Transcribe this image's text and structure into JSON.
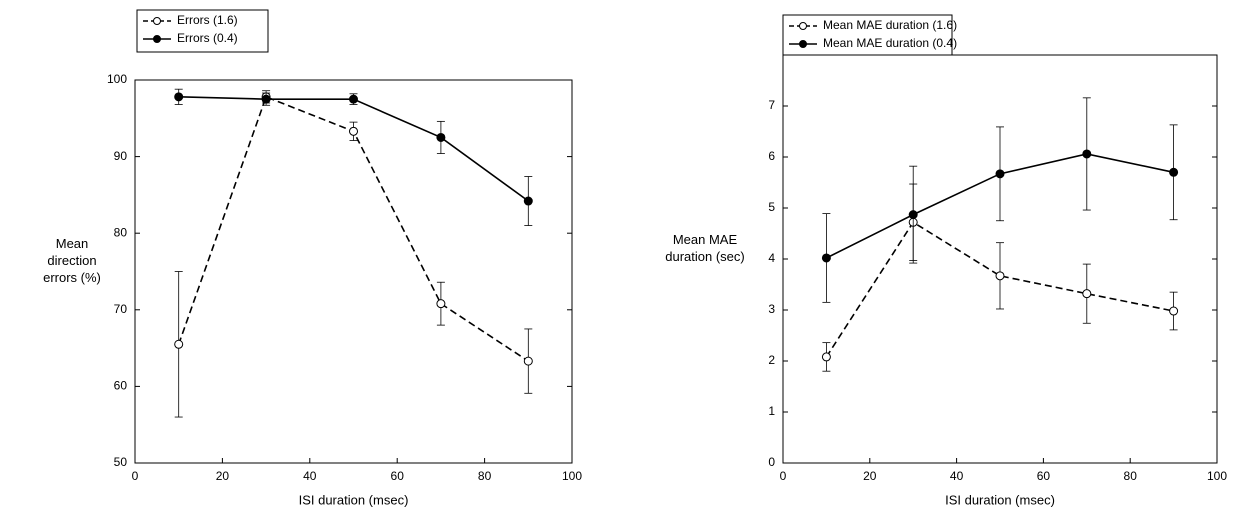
{
  "chart_data": [
    {
      "type": "line",
      "xlabel": "ISI duration (msec)",
      "ylabel": [
        "Mean",
        "direction",
        "errors (%)"
      ],
      "x": [
        10,
        30,
        50,
        70,
        90
      ],
      "xlim": [
        0,
        100
      ],
      "xticks": [
        0,
        20,
        40,
        60,
        80,
        100
      ],
      "ylim": [
        50,
        100
      ],
      "yticks": [
        50,
        60,
        70,
        80,
        90,
        100
      ],
      "legend": "top-left",
      "series": [
        {
          "name": "Errors (1.6)",
          "color": "#000000",
          "style": "dashed",
          "marker": "open",
          "values": [
            65.5,
            97.8,
            93.3,
            70.8,
            63.3
          ],
          "errors": [
            9.5,
            0.8,
            1.2,
            2.8,
            4.2
          ]
        },
        {
          "name": "Errors (0.4)",
          "color": "#000000",
          "style": "solid",
          "marker": "filled",
          "values": [
            97.8,
            97.5,
            97.5,
            92.5,
            84.2
          ],
          "errors": [
            1.0,
            0.8,
            0.7,
            2.1,
            3.2
          ]
        }
      ]
    },
    {
      "type": "line",
      "xlabel": "ISI duration (msec)",
      "ylabel": [
        "Mean MAE",
        "duration (sec)"
      ],
      "x": [
        10,
        30,
        50,
        70,
        90
      ],
      "xlim": [
        0,
        100
      ],
      "xticks": [
        0,
        20,
        40,
        60,
        80,
        100
      ],
      "ylim": [
        0,
        8
      ],
      "yticks": [
        0,
        1,
        2,
        3,
        4,
        5,
        6,
        7
      ],
      "legend": "top-left",
      "series": [
        {
          "name": "Mean MAE duration (1.6)",
          "color": "#000000",
          "style": "dashed",
          "marker": "open",
          "values": [
            2.08,
            4.72,
            3.67,
            3.32,
            2.98
          ],
          "errors": [
            0.28,
            0.75,
            0.65,
            0.58,
            0.37
          ]
        },
        {
          "name": "Mean MAE duration (0.4)",
          "color": "#000000",
          "style": "solid",
          "marker": "filled",
          "values": [
            4.02,
            4.87,
            5.67,
            6.06,
            5.7
          ],
          "errors": [
            0.87,
            0.95,
            0.92,
            1.1,
            0.93
          ]
        }
      ]
    }
  ]
}
